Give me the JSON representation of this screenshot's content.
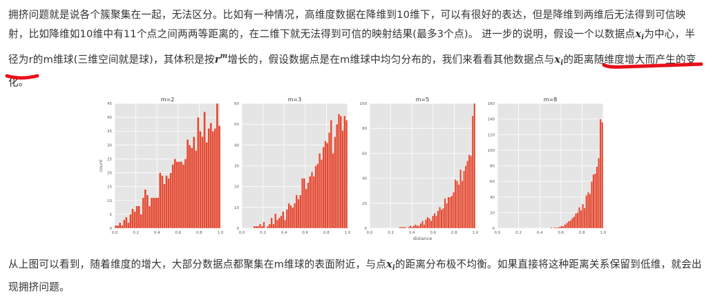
{
  "paragraph1": {
    "part1": "拥挤问题就是说各个簇聚集在一起，无法区分。比如有一种情况，高维度数据在降维到10维下，可以有很好的表达，但是降维到两维后无法得到可信映射，比如降维如10维中有11个点之间两两等距离的，在二维下就无法得到可信的映射结果(最多3个点)。 进一步的说明，假设一个以数据点",
    "x_var": "x",
    "x_sub": "i",
    "part2": "为中心，半径为r的m维球(三维空间就是球)，其体积是按",
    "r_var": "r",
    "r_sup": "m",
    "part3": "增长的，假设数据点是在m维球中均匀分布的，我们来看看其他数据点与",
    "x2_var": "x",
    "x2_sub": "i",
    "part4": "的距离随维度增大而产生的变化。"
  },
  "paragraph2": {
    "part1": "从上图可以看到，随着维度的增大，大部分数据点都聚集在m维球的表面附近，与点",
    "x_var": "x",
    "x_sub": "i",
    "part2": "的距离分布极不均衡。如果直接将这种距离关系保留到低维，就会出现拥挤问题。"
  },
  "colors": {
    "bar": "#e24a33",
    "panel_bg": "#e5e5e5",
    "grid": "#ffffff",
    "underline": "#e8101a"
  },
  "chart_data": [
    {
      "type": "bar",
      "title": "m=2",
      "xlabel": "",
      "ylabel": "count",
      "xlim": [
        0.0,
        1.0
      ],
      "ylim": [
        0,
        45
      ],
      "xticks": [
        "0.0",
        "0.2",
        "0.4",
        "0.6",
        "0.8",
        "1.0"
      ],
      "yticks": [
        "0",
        "5",
        "10",
        "15",
        "20",
        "25",
        "30",
        "35",
        "40",
        "45"
      ],
      "values": [
        1,
        1,
        2,
        1,
        3,
        4,
        2,
        5,
        7,
        6,
        8,
        8,
        5,
        11,
        14,
        12,
        8,
        11,
        11,
        11,
        11,
        20,
        19,
        16,
        19,
        18,
        20,
        23,
        25,
        24,
        24,
        24,
        23,
        25,
        32,
        30,
        29,
        33,
        28,
        40,
        35,
        33,
        42,
        31,
        36,
        38,
        35,
        36,
        45,
        37
      ]
    },
    {
      "type": "bar",
      "title": "m=3",
      "xlabel": "",
      "ylabel": "",
      "xlim": [
        0.0,
        1.0
      ],
      "ylim": [
        0,
        60
      ],
      "xticks": [
        "0.0",
        "0.2",
        "0.4",
        "0.6",
        "0.8",
        "1.0"
      ],
      "yticks": [
        "0",
        "10",
        "20",
        "30",
        "40",
        "50",
        "60"
      ],
      "values": [
        0,
        0,
        0,
        0,
        0,
        0,
        1,
        1,
        1,
        2,
        1,
        3,
        0,
        1,
        2,
        5,
        2,
        7,
        4,
        5,
        6,
        8,
        4,
        9,
        12,
        11,
        10,
        12,
        16,
        14,
        16,
        24,
        24,
        19,
        22,
        25,
        27,
        25,
        30,
        31,
        36,
        33,
        39,
        42,
        41,
        46,
        52,
        36,
        44,
        50,
        55,
        54,
        47,
        54,
        52
      ]
    },
    {
      "type": "bar",
      "title": "m=5",
      "xlabel": "distance",
      "ylabel": "",
      "xlim": [
        0.0,
        1.0
      ],
      "ylim": [
        0,
        100
      ],
      "xticks": [
        "0.0",
        "0.2",
        "0.4",
        "0.6",
        "0.8",
        "1.0"
      ],
      "yticks": [
        "0",
        "20",
        "40",
        "60",
        "80",
        "100"
      ],
      "values": [
        0,
        0,
        0,
        0,
        0,
        0,
        0,
        0,
        0,
        0,
        0,
        0,
        0,
        0,
        0,
        0,
        0,
        1,
        1,
        1,
        1,
        0,
        1,
        2,
        1,
        2,
        3,
        2,
        2,
        4,
        6,
        3,
        7,
        9,
        8,
        6,
        10,
        12,
        10,
        14,
        17,
        15,
        16,
        24,
        20,
        25,
        25,
        26,
        29,
        39,
        38,
        35,
        47,
        38,
        46,
        50,
        54,
        59,
        58,
        90,
        100
      ]
    },
    {
      "type": "bar",
      "title": "m=8",
      "xlabel": "",
      "ylabel": "",
      "xlim": [
        0.0,
        1.0
      ],
      "ylim": [
        0,
        160
      ],
      "xticks": [
        "0.0",
        "0.2",
        "0.4",
        "0.6",
        "0.8",
        "1.0"
      ],
      "yticks": [
        "0",
        "20",
        "40",
        "60",
        "80",
        "100",
        "120",
        "140",
        "160"
      ],
      "values": [
        0,
        0,
        0,
        0,
        0,
        0,
        0,
        0,
        0,
        0,
        0,
        0,
        0,
        0,
        0,
        0,
        0,
        0,
        0,
        0,
        0,
        0,
        0,
        0,
        0,
        0,
        0,
        0,
        0,
        0,
        1,
        0,
        1,
        1,
        1,
        2,
        3,
        3,
        5,
        7,
        9,
        10,
        13,
        15,
        19,
        20,
        27,
        23,
        31,
        26,
        42,
        46,
        44,
        60,
        69,
        70,
        79,
        90,
        140,
        136
      ]
    }
  ]
}
